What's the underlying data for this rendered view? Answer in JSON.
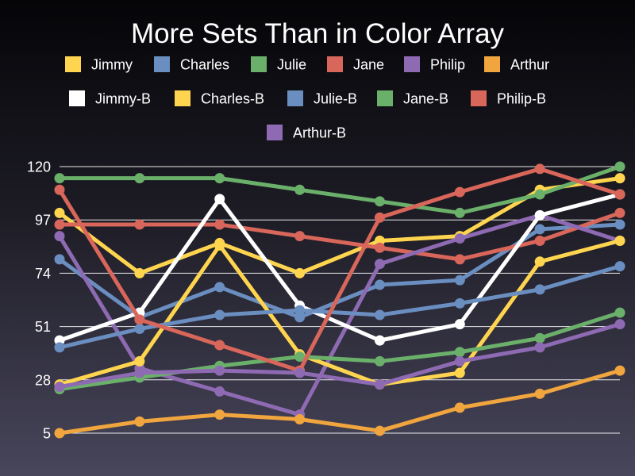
{
  "chart_data": {
    "type": "line",
    "title": "More Sets Than in Color Array",
    "xlabel": "",
    "ylabel": "",
    "ylim": [
      5,
      120
    ],
    "yticks": [
      5,
      28,
      51,
      74,
      97,
      120
    ],
    "grid": true,
    "legend_position": "top",
    "x": [
      1,
      2,
      3,
      4,
      5,
      6,
      7,
      8
    ],
    "series": [
      {
        "name": "Jimmy",
        "color": "#ffd54f",
        "values": [
          100,
          74,
          87,
          74,
          88,
          90,
          110,
          115
        ]
      },
      {
        "name": "Charles",
        "color": "#6a8ec0",
        "values": [
          80,
          55,
          68,
          55,
          69,
          71,
          93,
          95
        ]
      },
      {
        "name": "Julie",
        "color": "#6bb06a",
        "values": [
          115,
          115,
          115,
          110,
          105,
          100,
          108,
          120
        ]
      },
      {
        "name": "Jane",
        "color": "#d9665a",
        "values": [
          95,
          95,
          95,
          90,
          85,
          80,
          88,
          100
        ]
      },
      {
        "name": "Philip",
        "color": "#8e6ab3",
        "values": [
          90,
          33,
          23,
          13,
          78,
          89,
          99,
          88
        ]
      },
      {
        "name": "Arthur",
        "color": "#f0a53e",
        "values": [
          5,
          10,
          13,
          11,
          6,
          16,
          22,
          32
        ]
      },
      {
        "name": "Jimmy-B",
        "color": "#ffffff",
        "values": [
          45,
          57,
          106,
          60,
          45,
          52,
          99,
          108
        ]
      },
      {
        "name": "Charles-B",
        "color": "#ffd54f",
        "values": [
          26,
          36,
          86,
          39,
          26,
          31,
          79,
          88
        ]
      },
      {
        "name": "Julie-B",
        "color": "#6a8ec0",
        "values": [
          42,
          50,
          56,
          58,
          56,
          61,
          67,
          77
        ]
      },
      {
        "name": "Jane-B",
        "color": "#6bb06a",
        "values": [
          24,
          29,
          34,
          38,
          36,
          40,
          46,
          57
        ]
      },
      {
        "name": "Philip-B",
        "color": "#d9665a",
        "values": [
          110,
          54,
          43,
          32,
          98,
          109,
          119,
          108
        ]
      },
      {
        "name": "Arthur-B",
        "color": "#8e6ab3",
        "values": [
          25,
          31,
          32,
          31,
          26,
          36,
          42,
          52
        ]
      }
    ]
  }
}
